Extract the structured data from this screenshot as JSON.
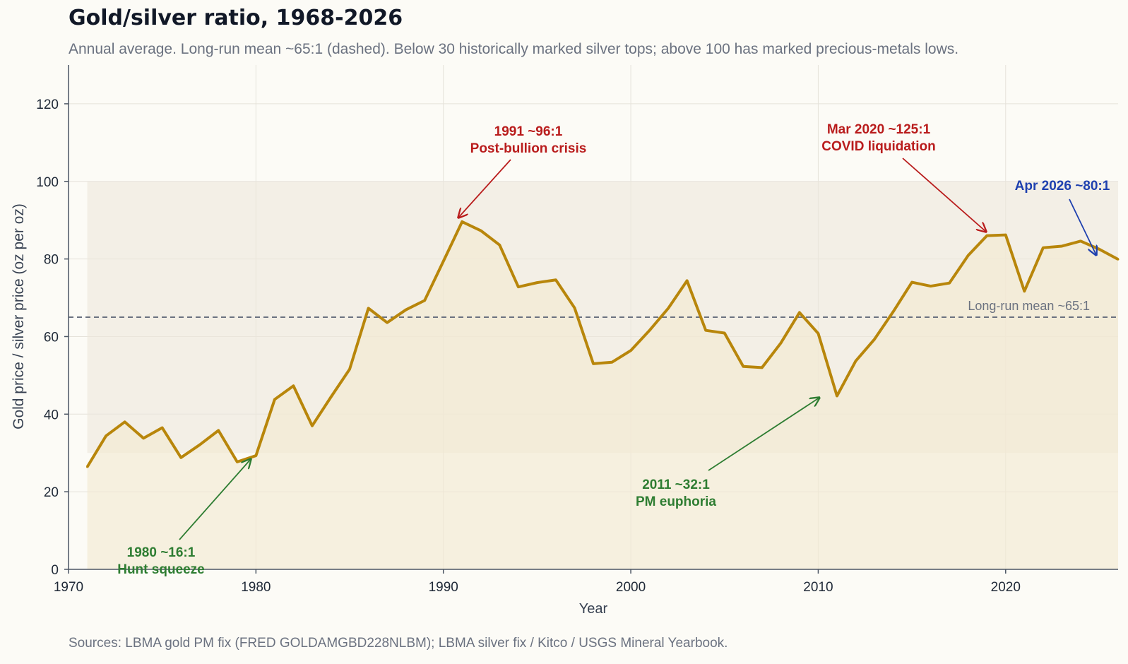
{
  "title": "Gold/silver ratio, 1968-2026",
  "subtitle": "Annual average. Long-run mean ~65:1 (dashed). Below 30 historically marked silver tops; above 100 has marked precious-metals lows.",
  "source": "Sources: LBMA gold PM fix (FRED GOLDAMGBD228NLBM); LBMA silver fix / Kitco / USGS Mineral Yearbook.",
  "colors": {
    "line": "#b8860b",
    "area": "#f3ead3",
    "band": "#ece7dc",
    "mean": "#6b7280",
    "red": "#b91c1c",
    "green": "#2e7d32",
    "blue": "#1e40af",
    "grid": "#e5e2da",
    "axis": "#4b5563"
  },
  "chart_data": {
    "type": "line",
    "xlabel": "Year",
    "ylabel": "Gold price / silver price (oz per oz)",
    "xlim": [
      1970,
      2026
    ],
    "ylim": [
      0,
      130
    ],
    "xticks": [
      1970,
      1980,
      1990,
      2000,
      2010,
      2020
    ],
    "yticks": [
      0,
      20,
      40,
      60,
      80,
      100,
      120
    ],
    "grid": true,
    "band": [
      30,
      100
    ],
    "mean": {
      "value": 65,
      "label": "Long-run mean ~65:1"
    },
    "series": [
      {
        "x": [
          1971,
          1972,
          1973,
          1974,
          1975,
          1976,
          1977,
          1978,
          1979,
          1980,
          1981,
          1982,
          1983,
          1984,
          1985,
          1986,
          1987,
          1988,
          1989,
          1990,
          1991,
          1992,
          1993,
          1994,
          1995,
          1996,
          1997,
          1998,
          1999,
          2000,
          2001,
          2002,
          2003,
          2004,
          2005,
          2006,
          2007,
          2008,
          2009,
          2010,
          2011,
          2012,
          2013,
          2014,
          2015,
          2016,
          2017,
          2018,
          2019,
          2020,
          2021,
          2022,
          2023,
          2024,
          2025,
          2026
        ],
        "values": [
          26.4,
          34.4,
          38.0,
          33.8,
          36.5,
          28.8,
          32.1,
          35.8,
          27.7,
          29.3,
          43.8,
          47.3,
          37.0,
          44.4,
          51.6,
          67.3,
          63.6,
          66.9,
          69.3,
          79.4,
          89.6,
          87.3,
          83.6,
          72.8,
          73.9,
          74.6,
          67.4,
          53.0,
          53.4,
          56.4,
          61.6,
          67.3,
          74.4,
          61.6,
          60.9,
          52.3,
          52.0,
          58.3,
          66.2,
          60.8,
          44.7,
          53.7,
          59.3,
          66.4,
          74.0,
          73.0,
          73.8,
          80.9,
          86.0,
          86.2,
          71.7,
          82.9,
          83.3,
          84.6,
          82.5,
          79.9
        ]
      }
    ],
    "annotations": [
      {
        "lines": [
          "1980 ~16:1",
          "Hunt squeeze"
        ],
        "x": 1980,
        "y": 29.3,
        "color": "green"
      },
      {
        "lines": [
          "1991 ~96:1",
          "Post-bullion crisis"
        ],
        "x": 1991,
        "y": 89.6,
        "color": "red"
      },
      {
        "lines": [
          "2011 ~32:1",
          "PM euphoria"
        ],
        "x": 2011,
        "y": 44.7,
        "color": "green"
      },
      {
        "lines": [
          "Mar 2020 ~125:1",
          "COVID liquidation"
        ],
        "x": 2020,
        "y": 86.2,
        "color": "red"
      },
      {
        "lines": [
          "Apr 2026 ~80:1"
        ],
        "x": 2026,
        "y": 79.9,
        "color": "blue"
      }
    ]
  }
}
